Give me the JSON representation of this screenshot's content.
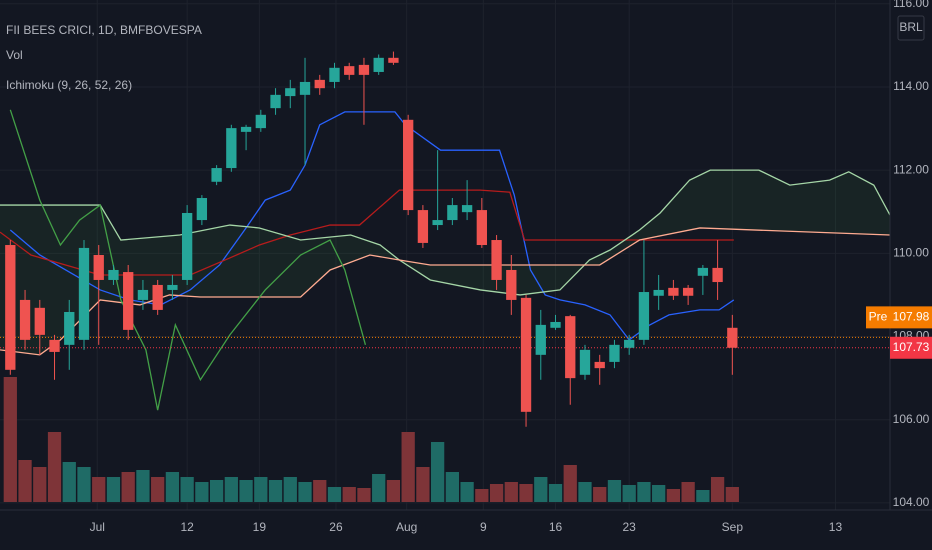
{
  "chart_data": {
    "type": "candlestick",
    "title": "FII BEES CRICI, 1D, BMFBOVESPA",
    "indicators": [
      "Vol",
      "Ichimoku (9, 26, 52, 26)"
    ],
    "currency": "BRL",
    "up_color": "#26a69a",
    "down_color": "#ef5350",
    "volume_up_color": "#1f6b66",
    "volume_down_color": "#7e3438",
    "x": [
      0,
      1,
      2,
      3,
      4,
      5,
      6,
      7,
      8,
      9,
      10,
      11,
      12,
      13,
      14,
      15,
      16,
      17,
      18,
      19,
      20,
      21,
      22,
      23,
      24,
      25,
      26,
      27,
      28,
      29,
      30,
      31,
      32,
      33,
      34,
      35,
      36,
      37,
      38,
      39,
      40,
      41,
      42,
      43,
      44,
      45,
      46,
      47,
      48,
      49
    ],
    "open": [
      110.2,
      108.88,
      108.69,
      107.92,
      107.8,
      107.92,
      109.96,
      109.36,
      109.55,
      108.88,
      109.24,
      109.12,
      109.36,
      110.8,
      111.72,
      112.05,
      112.92,
      113.01,
      113.49,
      113.78,
      113.81,
      114.17,
      114.12,
      114.5,
      114.53,
      114.36,
      114.7,
      113.21,
      111.04,
      110.68,
      110.8,
      110.99,
      111.04,
      110.32,
      109.6,
      108.93,
      107.56,
      108.21,
      108.49,
      107.08,
      107.39,
      107.39,
      107.73,
      107.92,
      108.98,
      109.17,
      109.17,
      109.46,
      109.65,
      108.21
    ],
    "high": [
      110.32,
      109.12,
      108.88,
      108.04,
      108.88,
      110.32,
      110.2,
      109.72,
      109.72,
      109.36,
      109.36,
      109.48,
      111.16,
      111.4,
      112.12,
      113.09,
      113.09,
      113.45,
      113.97,
      114.17,
      114.7,
      114.29,
      114.58,
      114.58,
      114.7,
      114.78,
      114.85,
      113.33,
      111.16,
      112.48,
      111.33,
      111.76,
      111.33,
      110.44,
      109.96,
      109.0,
      108.64,
      108.52,
      108.52,
      107.8,
      107.56,
      107.92,
      108.04,
      110.32,
      109.48,
      109.36,
      109.24,
      109.72,
      110.32,
      108.52
    ],
    "low": [
      107.08,
      107.68,
      107.56,
      106.96,
      107.2,
      107.68,
      107.8,
      109.24,
      107.92,
      108.64,
      108.52,
      108.88,
      109.24,
      110.68,
      111.64,
      111.96,
      112.48,
      112.92,
      113.33,
      113.49,
      112.12,
      113.81,
      113.97,
      114.17,
      113.09,
      114.29,
      114.53,
      110.92,
      110.13,
      110.56,
      110.68,
      110.8,
      110.13,
      109.12,
      108.52,
      105.83,
      106.96,
      108.16,
      106.36,
      106.96,
      106.84,
      107.24,
      107.56,
      107.8,
      108.64,
      108.88,
      108.76,
      109.0,
      108.88,
      107.08
    ],
    "close": [
      107.2,
      107.92,
      108.04,
      107.63,
      108.59,
      110.13,
      109.36,
      109.6,
      108.16,
      109.12,
      108.64,
      109.24,
      110.97,
      111.33,
      112.05,
      113.01,
      113.04,
      113.33,
      113.81,
      113.97,
      114.12,
      113.97,
      114.46,
      114.29,
      114.29,
      114.7,
      114.58,
      111.04,
      110.25,
      110.8,
      111.16,
      111.16,
      110.2,
      109.36,
      108.88,
      106.19,
      108.28,
      108.35,
      107.0,
      107.68,
      107.24,
      107.8,
      107.92,
      109.07,
      109.12,
      108.98,
      108.98,
      109.65,
      109.31,
      107.73
    ],
    "volume": [
      125,
      42,
      35,
      70,
      40,
      35,
      25,
      25,
      30,
      32,
      25,
      30,
      25,
      20,
      22,
      25,
      22,
      25,
      22,
      25,
      20,
      22,
      15,
      15,
      14,
      28,
      22,
      70,
      35,
      60,
      30,
      20,
      13,
      18,
      20,
      18,
      25,
      18,
      37,
      20,
      15,
      22,
      17,
      20,
      17,
      13,
      20,
      12,
      25,
      15
    ],
    "lines": [
      {
        "color": "#2962ff",
        "x": [
          0,
          2.0,
          6.1,
          8.1,
          10.2,
          12.2,
          14.2,
          15.9,
          17.3,
          19.0,
          20.0,
          21.0,
          22.7,
          24.1,
          26.1,
          26.8,
          29.2,
          31.2,
          33.2,
          34.2,
          35.3,
          36.3,
          37.3,
          39.0,
          40.7,
          42.0,
          43.4,
          44.7,
          46.8,
          48.1,
          49.1
        ],
        "values": [
          110.56,
          109.96,
          109.12,
          108.88,
          108.76,
          109.12,
          109.72,
          110.56,
          111.28,
          111.52,
          112.12,
          113.09,
          113.4,
          113.4,
          113.4,
          113.09,
          112.48,
          112.48,
          112.48,
          111.4,
          109.6,
          109.0,
          108.88,
          108.76,
          108.52,
          107.92,
          108.28,
          108.52,
          108.64,
          108.64,
          108.88
        ]
      },
      {
        "color": "#b71c1c",
        "x": [
          -0.7,
          1.4,
          6.1,
          12.2,
          14.9,
          16.9,
          19.0,
          21.7,
          23.7,
          26.4,
          31.9,
          33.9,
          34.9,
          49.1
        ],
        "values": [
          110.51,
          109.96,
          109.48,
          109.48,
          109.89,
          110.2,
          110.44,
          110.68,
          110.68,
          111.52,
          111.52,
          111.47,
          110.32,
          110.32
        ]
      },
      {
        "color": "#a5d6a7",
        "x": [
          -0.7,
          6.1,
          7.5,
          11.5,
          14.9,
          16.9,
          19.7,
          23.1,
          25.1,
          26.4,
          28.5,
          31.9,
          34.6,
          37.3,
          39.3,
          40.7,
          42.7,
          44.1,
          46.1,
          47.5,
          50.8,
          52.9,
          55.6,
          56.9,
          58.6,
          59.7
        ],
        "values": [
          111.16,
          111.16,
          110.32,
          110.44,
          110.68,
          110.61,
          110.32,
          110.44,
          110.2,
          109.84,
          109.36,
          109.12,
          109.0,
          109.12,
          109.84,
          110.08,
          110.56,
          110.97,
          111.76,
          112.0,
          112.0,
          111.64,
          111.76,
          111.96,
          111.64,
          110.92
        ]
      },
      {
        "color": "#ffab91",
        "x": [
          -0.7,
          2.0,
          3.4,
          6.1,
          8.8,
          10.8,
          12.9,
          19.7,
          21.7,
          24.4,
          26.4,
          28.5,
          40.0,
          42.7,
          46.8,
          59.7
        ],
        "values": [
          107.68,
          107.56,
          107.92,
          108.88,
          108.76,
          109.0,
          108.95,
          108.95,
          109.6,
          109.96,
          109.84,
          109.72,
          109.72,
          110.32,
          110.61,
          110.44
        ]
      },
      {
        "color": "#43a047",
        "x": [
          0,
          2.0,
          3.4,
          4.7,
          6.1,
          7.5,
          9.2,
          10.0,
          11.2,
          12.9,
          14.9,
          17.3,
          19.7,
          21.7,
          22.7,
          24.1
        ],
        "values": [
          113.45,
          111.28,
          110.2,
          110.8,
          111.16,
          108.88,
          107.68,
          106.23,
          108.28,
          106.96,
          108.04,
          109.12,
          109.96,
          110.32,
          109.6,
          107.8
        ]
      }
    ],
    "price_labels": [
      {
        "label": "Pre",
        "value": 107.98,
        "color": "#f57c00"
      },
      {
        "value": 107.73,
        "color": "#f23645"
      }
    ],
    "ylim": [
      103.83,
      116.09
    ],
    "xlim": [
      -0.7,
      59.7
    ],
    "yticks": [
      {
        "value": 104,
        "label": "104.00"
      },
      {
        "value": 106,
        "label": "106.00"
      },
      {
        "value": 108,
        "label": "108.00"
      },
      {
        "value": 110,
        "label": "110.00"
      },
      {
        "value": 112,
        "label": "112.00"
      },
      {
        "value": 114,
        "label": "114.00"
      },
      {
        "value": 116,
        "label": "116.00"
      }
    ],
    "xticks": [
      {
        "value": 5.9,
        "label": "Jul"
      },
      12,
      {
        "value": 16.9,
        "label": "19"
      },
      {
        "value": 22.1,
        "label": "26"
      },
      {
        "value": 26.9,
        "label": "Aug"
      },
      {
        "value": 32.1,
        "label": "9"
      },
      {
        "value": 37.0,
        "label": "16"
      },
      {
        "value": 42.0,
        "label": "23"
      },
      {
        "value": 49.0,
        "label": "Sep"
      },
      {
        "value": 56.0,
        "label": "13"
      }
    ],
    "grid": true
  }
}
